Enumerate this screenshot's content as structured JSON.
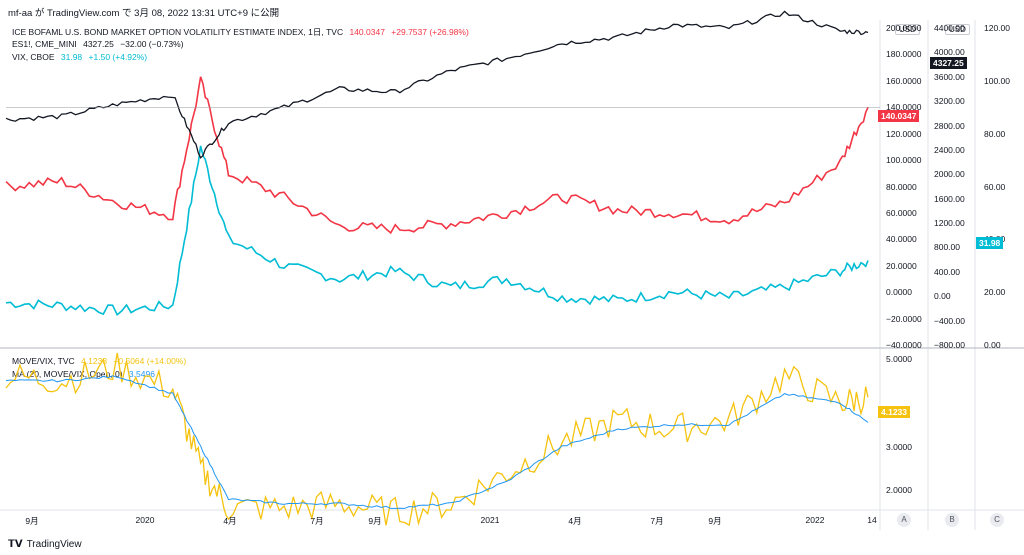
{
  "header": {
    "text": "mf-aa が TradingView.com で 3月 08, 2022 13:31 UTC+9 に公開"
  },
  "legend_top": [
    {
      "name": "ICE BOFAML U.S. BOND MARKET OPTION VOLATILITY ESTIMATE INDEX, 1日, TVC",
      "value": "140.0347",
      "change": "+29.7537 (+26.98%)",
      "color": "#f23645"
    },
    {
      "name": "ES1!, CME_MINI",
      "value": "4327.25",
      "change": "−32.00 (−0.73%)",
      "color": "#131722"
    },
    {
      "name": "VIX, CBOE",
      "value": "31.98",
      "change": "+1.50 (+4.92%)",
      "color": "#00bcd4"
    }
  ],
  "legend_bottom": [
    {
      "name": "MOVE/VIX, TVC",
      "value": "4.1233",
      "change": "+0.5064 (+14.00%)",
      "color": "#f5c30f"
    },
    {
      "name": "MA (20, MOVE/VIX, Open, 0)",
      "value": "3.5496",
      "change": "",
      "color": "#2196f3"
    }
  ],
  "axes": {
    "unit": "USD",
    "move_ticks": [
      "200.0000",
      "180.0000",
      "160.0000",
      "140.0000",
      "120.0000",
      "100.0000",
      "80.0000",
      "60.0000",
      "40.0000",
      "20.0000",
      "0.0000",
      "−20.0000",
      "−40.0000"
    ],
    "es_ticks": [
      "4400.00",
      "4000.00",
      "3600.00",
      "3200.00",
      "2800.00",
      "2400.00",
      "2000.00",
      "1600.00",
      "1200.00",
      "800.00",
      "400.00",
      "0.00",
      "−400.00",
      "−800.00"
    ],
    "vix_ticks": [
      "120.00",
      "100.00",
      "80.00",
      "60.00",
      "40.00",
      "20.00",
      "0.00"
    ],
    "ratio_ticks": [
      "5.0000",
      "3.0000",
      "2.0000"
    ],
    "x_ticks": [
      "9月",
      "2020",
      "4月",
      "7月",
      "9月",
      "2021",
      "4月",
      "7月",
      "9月",
      "2022",
      "14"
    ],
    "pane_buttons": [
      "A",
      "B",
      "C"
    ]
  },
  "price_labels": {
    "move": {
      "value": "140.0347",
      "color": "#f23645"
    },
    "es": {
      "value": "4327.25",
      "color": "#131722"
    },
    "vix": {
      "value": "31.98",
      "color": "#00bcd4"
    },
    "ratio": {
      "value": "4.1233",
      "color": "#f5c30f"
    }
  },
  "footer": {
    "brand": "TradingView"
  },
  "chart_data": [
    {
      "type": "line",
      "pane": "top",
      "x": [
        "2019-08",
        "2019-10",
        "2019-12",
        "2020-02",
        "2020-03",
        "2020-04",
        "2020-06",
        "2020-08",
        "2020-10",
        "2020-12",
        "2021-02",
        "2021-04",
        "2021-06",
        "2021-08",
        "2021-10",
        "2021-12",
        "2022-02",
        "2022-03"
      ],
      "series": [
        {
          "name": "MOVE",
          "axis": "left",
          "color": "#f23645",
          "values": [
            80,
            84,
            68,
            58,
            160,
            90,
            72,
            50,
            48,
            52,
            60,
            72,
            62,
            60,
            55,
            68,
            98,
            140
          ]
        },
        {
          "name": "ES1!",
          "axis": "middle",
          "color": "#131722",
          "values": [
            2900,
            2950,
            3150,
            3300,
            2300,
            2850,
            3100,
            3400,
            3350,
            3700,
            3900,
            4150,
            4250,
            4450,
            4400,
            4650,
            4350,
            4327
          ]
        },
        {
          "name": "VIX",
          "axis": "right",
          "color": "#00bcd4",
          "values": [
            16,
            15,
            13,
            15,
            75,
            40,
            30,
            25,
            28,
            22,
            25,
            18,
            17,
            20,
            18,
            22,
            28,
            32
          ]
        }
      ],
      "ylim_left": [
        -40,
        200
      ],
      "ylim_middle": [
        -800,
        4400
      ],
      "ylim_right": [
        0,
        120
      ]
    },
    {
      "type": "line",
      "pane": "bottom",
      "x": [
        "2019-08",
        "2019-10",
        "2019-12",
        "2020-02",
        "2020-03",
        "2020-04",
        "2020-06",
        "2020-08",
        "2020-10",
        "2020-12",
        "2021-02",
        "2021-04",
        "2021-06",
        "2021-08",
        "2021-10",
        "2021-12",
        "2022-02",
        "2022-03"
      ],
      "series": [
        {
          "name": "MOVE/VIX",
          "color": "#f5c30f",
          "values": [
            4.6,
            4.5,
            4.8,
            4.3,
            2.5,
            1.6,
            1.6,
            1.7,
            1.5,
            1.7,
            2.4,
            3.1,
            3.6,
            3.4,
            3.6,
            4.6,
            4.0,
            4.12
          ]
        },
        {
          "name": "MA 20",
          "color": "#2196f3",
          "values": [
            4.5,
            4.5,
            4.6,
            4.2,
            3.0,
            1.8,
            1.7,
            1.7,
            1.6,
            1.7,
            2.2,
            3.0,
            3.4,
            3.5,
            3.5,
            4.2,
            4.0,
            3.55
          ]
        }
      ],
      "ylim": [
        1.6,
        5.2
      ]
    }
  ]
}
